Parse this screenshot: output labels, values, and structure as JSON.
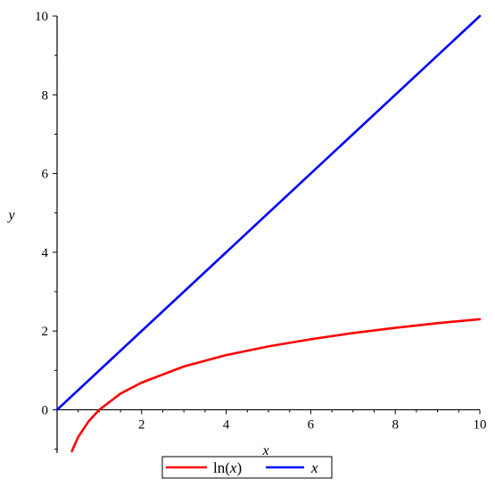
{
  "chart_data": {
    "type": "line",
    "xlabel": "x",
    "ylabel": "y",
    "xlim": [
      0,
      10
    ],
    "ylim": [
      -1.1,
      10
    ],
    "x_ticks": [
      2,
      4,
      6,
      8,
      10
    ],
    "x_tick_labels": [
      "2",
      "4",
      "6",
      "8",
      "10"
    ],
    "y_ticks": [
      0,
      2,
      4,
      6,
      8,
      10
    ],
    "y_tick_labels": [
      "0",
      "2",
      "4",
      "6",
      "8",
      "10"
    ],
    "grid": false,
    "legend_position": "bottom-center",
    "series": [
      {
        "name": "ln(x)",
        "name_parts": [
          "ln(",
          "x",
          ")"
        ],
        "color": "#ff0000",
        "points": [
          [
            0.35,
            -1.05
          ],
          [
            0.5,
            -0.69
          ],
          [
            0.75,
            -0.29
          ],
          [
            1,
            0
          ],
          [
            1.5,
            0.41
          ],
          [
            2,
            0.69
          ],
          [
            3,
            1.1
          ],
          [
            4,
            1.39
          ],
          [
            5,
            1.61
          ],
          [
            6,
            1.79
          ],
          [
            7,
            1.95
          ],
          [
            8,
            2.08
          ],
          [
            9,
            2.2
          ],
          [
            10,
            2.3
          ]
        ]
      },
      {
        "name": "x",
        "color": "#0000ff",
        "points": [
          [
            0,
            0
          ],
          [
            10,
            10
          ]
        ]
      }
    ]
  }
}
